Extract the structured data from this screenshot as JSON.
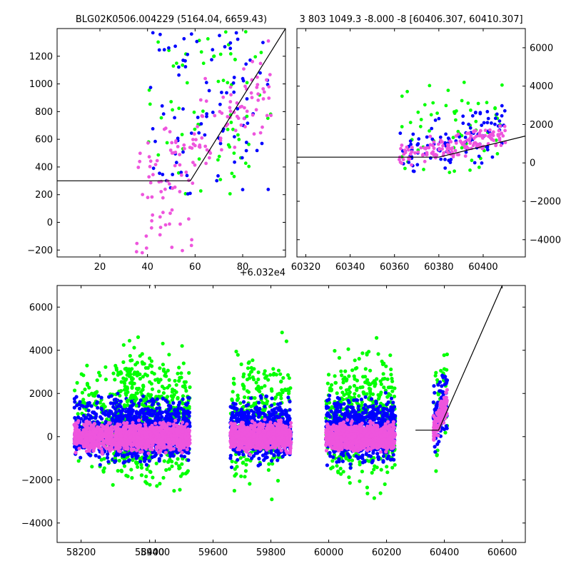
{
  "chart_data": [
    {
      "type": "scatter",
      "title": "BLG02K0506.004229 (5164.04, 6659.43)",
      "xlim": [
        2,
        98
      ],
      "ylim": [
        -250,
        1400
      ],
      "xticks": [
        20,
        40,
        60,
        80
      ],
      "yticks": [
        -200,
        0,
        200,
        400,
        600,
        800,
        1000,
        1200
      ],
      "offset_text": "+6.032e4",
      "model_line": [
        [
          2,
          300
        ],
        [
          58,
          300
        ],
        [
          98,
          1400
        ]
      ],
      "series_colors": [
        "#00ff00",
        "#0000ff",
        "#ee55dd"
      ],
      "clusters": [
        {
          "x": [
            40,
            92
          ],
          "y": [
            200,
            1380
          ],
          "n": [
            70,
            90,
            110
          ],
          "trend": 0
        },
        {
          "x": [
            35,
            60
          ],
          "y": [
            -250,
            600
          ],
          "n": [
            0,
            0,
            40
          ],
          "trend": 0
        }
      ]
    },
    {
      "type": "scatter",
      "title": "3 803 1049.3 -8.000 -8 [60406.307, 60410.307]",
      "xlim": [
        60316,
        60419
      ],
      "ylim": [
        -4900,
        7000
      ],
      "xticks": [
        60320,
        60340,
        60360,
        60380,
        60400
      ],
      "yticks": [
        -4000,
        -2000,
        0,
        2000,
        4000,
        6000
      ],
      "yaxis_side": "right",
      "model_line": [
        [
          60316,
          300
        ],
        [
          60380,
          300
        ],
        [
          60419,
          1400
        ]
      ],
      "series_colors": [
        "#00ff00",
        "#0000ff",
        "#ee55dd"
      ],
      "clusters": [
        {
          "x": [
            60362,
            60410
          ],
          "y": [
            -500,
            4200
          ],
          "n": [
            60,
            110,
            150
          ],
          "trend": 1
        }
      ]
    },
    {
      "type": "scatter",
      "title": "",
      "xlim": [
        58130,
        60680
      ],
      "ylim": [
        -4900,
        7000
      ],
      "xticks": [
        58200,
        58400,
        59400,
        59600,
        59800,
        60000,
        60200,
        60400,
        60600
      ],
      "xtick_labels": [
        "58200",
        "58400",
        "59400",
        "59600",
        "59800",
        "60000",
        "60200",
        "60400",
        "60600"
      ],
      "yticks": [
        -4000,
        -2000,
        0,
        2000,
        4000,
        6000
      ],
      "axis_break": {
        "between": [
          58400,
          59400
        ],
        "display_ratio": 0.09
      },
      "model_line": [
        [
          60300,
          300
        ],
        [
          60380,
          300
        ],
        [
          60600,
          7000
        ]
      ],
      "series_colors": [
        "#00ff00",
        "#0000ff",
        "#ee55dd"
      ],
      "clusters": [
        {
          "x": [
            58180,
            58410
          ],
          "y": [
            -4300,
            6800
          ],
          "n": [
            260,
            500,
            700
          ],
          "trend": 0
        },
        {
          "x": [
            59260,
            59520
          ],
          "y": [
            -4500,
            7000
          ],
          "n": [
            500,
            800,
            900
          ],
          "trend": 0
        },
        {
          "x": [
            59660,
            59870
          ],
          "y": [
            -4800,
            7000
          ],
          "n": [
            300,
            650,
            800
          ],
          "trend": 0
        },
        {
          "x": [
            59990,
            60230
          ],
          "y": [
            -4800,
            7000
          ],
          "n": [
            500,
            850,
            900
          ],
          "trend": 0
        },
        {
          "x": [
            60362,
            60410
          ],
          "y": [
            -1800,
            4500
          ],
          "n": [
            40,
            90,
            150
          ],
          "trend": 1
        }
      ]
    }
  ]
}
